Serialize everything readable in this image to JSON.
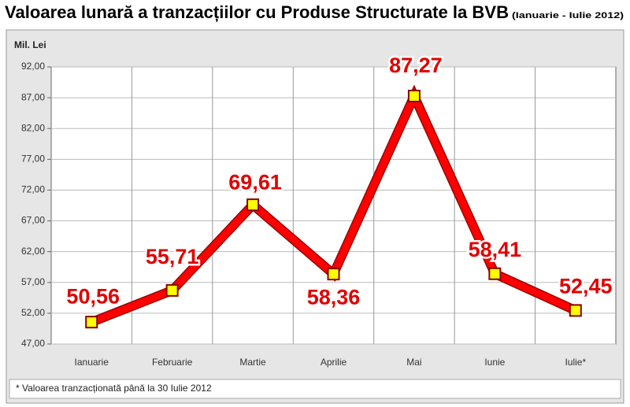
{
  "chart_data": {
    "type": "line",
    "title": "Valoarea lunară a tranzacțiilor cu Produse Structurate la BVB",
    "subtitle": "(Ianuarie - Iulie 2012)",
    "y_axis_label": "Mil. Lei",
    "footnote": "* Valoarea tranzacționată până la 30 Iulie 2012",
    "categories": [
      "Ianuarie",
      "Februarie",
      "Martie",
      "Aprilie",
      "Mai",
      "Iunie",
      "Iulie*"
    ],
    "values": [
      50.56,
      55.71,
      69.61,
      58.36,
      87.27,
      58.41,
      52.45
    ],
    "value_labels": [
      "50,56",
      "55,71",
      "69,61",
      "58,36",
      "87,27",
      "58,41",
      "52,45"
    ],
    "color": "#ff0000",
    "marker_color": "#ffff00",
    "ylim": [
      47,
      92
    ],
    "yticks": [
      {
        "value": 47,
        "label": "47,00"
      },
      {
        "value": 52,
        "label": "52,00"
      },
      {
        "value": 57,
        "label": "57,00"
      },
      {
        "value": 62,
        "label": "62,00"
      },
      {
        "value": 67,
        "label": "67,00"
      },
      {
        "value": 72,
        "label": "72,00"
      },
      {
        "value": 77,
        "label": "77,00"
      },
      {
        "value": 82,
        "label": "82,00"
      },
      {
        "value": 87,
        "label": "87,00"
      },
      {
        "value": 92,
        "label": "92,00"
      }
    ],
    "grid": true
  }
}
